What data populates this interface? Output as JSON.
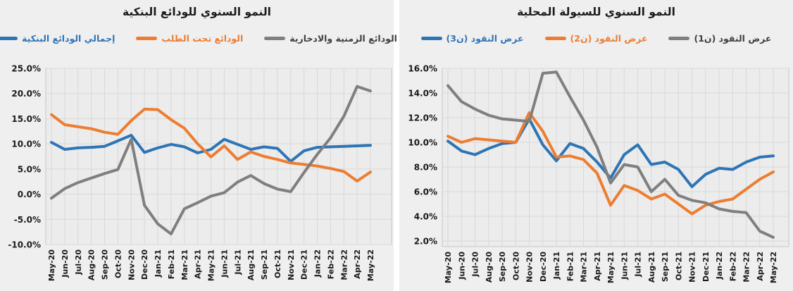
{
  "chart_data": [
    {
      "type": "line",
      "title": "النمو السنوي للودائع البنكية",
      "legend_position": "top",
      "grid": true,
      "ylabel": "",
      "xlabel": "",
      "ylim": [
        -10,
        25
      ],
      "ytick_values": [
        25,
        20,
        15,
        10,
        5,
        0,
        -5,
        -10
      ],
      "ytick_labels": [
        "25.0%",
        "20.0%",
        "15.0%",
        "10.0%",
        "5.0%",
        "0.0%",
        "-5.0%",
        "-10.0%"
      ],
      "categories": [
        "May-20",
        "Jun-20",
        "Jul-20",
        "Aug-20",
        "Sep-20",
        "Oct-20",
        "Nov-20",
        "Dec-20",
        "Jan-21",
        "Feb-21",
        "Mar-21",
        "Apr-21",
        "May-21",
        "Jun-21",
        "Jul-21",
        "Aug-21",
        "Sep-21",
        "Oct-21",
        "Nov-21",
        "Dec-21",
        "Jan-22",
        "Feb-22",
        "Mar-22",
        "Apr-22",
        "May-22"
      ],
      "series": [
        {
          "name": "إجمالي الودائع البنكية",
          "color": "#2E75B6",
          "label_color": "#2E75B6",
          "values": [
            10.3,
            8.9,
            9.2,
            9.3,
            9.5,
            10.6,
            11.7,
            8.3,
            9.2,
            9.9,
            9.4,
            8.2,
            8.9,
            10.9,
            9.9,
            8.9,
            9.4,
            9.1,
            6.5,
            8.6,
            9.3,
            9.4,
            9.5,
            9.6,
            9.7
          ]
        },
        {
          "name": "الودائع تحت الطلب",
          "color": "#ED7D31",
          "label_color": "#ED7D31",
          "values": [
            15.8,
            13.8,
            13.4,
            13.0,
            12.3,
            11.9,
            14.6,
            16.9,
            16.8,
            14.8,
            13.1,
            10.0,
            7.4,
            9.6,
            6.9,
            8.4,
            7.5,
            6.9,
            6.2,
            5.9,
            5.6,
            5.1,
            4.5,
            2.6,
            4.4
          ]
        },
        {
          "name": "الودائع الزمنية والادخارية",
          "color": "#7F7F7F",
          "label_color": "#3f3f3f",
          "values": [
            -0.8,
            1.1,
            2.3,
            3.2,
            4.1,
            4.9,
            10.9,
            -2.2,
            -5.9,
            -7.9,
            -2.9,
            -1.7,
            -0.4,
            0.3,
            2.4,
            3.7,
            2.1,
            1.0,
            0.5,
            4.3,
            7.9,
            11.2,
            15.5,
            21.4,
            20.5
          ]
        }
      ]
    },
    {
      "type": "line",
      "title": "النمو السنوي للسيولة المحلية",
      "legend_position": "top",
      "grid": true,
      "ylabel": "",
      "xlabel": "",
      "ylim": [
        2,
        16
      ],
      "ytick_values": [
        16,
        14,
        12,
        10,
        8,
        6,
        4,
        2
      ],
      "ytick_labels": [
        "16.0%",
        "14.0%",
        "12.0%",
        "10.0%",
        "8.0%",
        "6.0%",
        "4.0%",
        "2.0%"
      ],
      "categories": [
        "May-20",
        "Jun-20",
        "Jul-20",
        "Aug-20",
        "Sep-20",
        "Oct-20",
        "Nov-20",
        "Dec-20",
        "Jan-21",
        "Feb-21",
        "Mar-21",
        "Apr-21",
        "May-21",
        "Jun-21",
        "Jul-21",
        "Aug-21",
        "Sep-21",
        "Oct-21",
        "Nov-21",
        "Dec-21",
        "Jan-22",
        "Feb-22",
        "Mar-22",
        "Apr-22",
        "May-22"
      ],
      "series": [
        {
          "name": "عرض النقود (ن3)",
          "color": "#2E75B6",
          "label_color": "#2E75B6",
          "values": [
            10.1,
            9.3,
            9.0,
            9.5,
            9.9,
            10.0,
            11.9,
            9.8,
            8.5,
            9.9,
            9.5,
            8.4,
            7.1,
            9.0,
            9.8,
            8.2,
            8.4,
            7.8,
            6.4,
            7.4,
            7.9,
            7.8,
            8.4,
            8.8,
            8.9
          ]
        },
        {
          "name": "عرض النقود (ن2)",
          "color": "#ED7D31",
          "label_color": "#ED7D31",
          "values": [
            10.5,
            10.0,
            10.3,
            10.2,
            10.1,
            10.0,
            12.4,
            10.9,
            8.8,
            8.9,
            8.6,
            7.5,
            4.9,
            6.5,
            6.1,
            5.4,
            5.8,
            5.0,
            4.2,
            4.9,
            5.2,
            5.4,
            6.2,
            7.0,
            7.6
          ]
        },
        {
          "name": "عرض النقود (ن1)",
          "color": "#7F7F7F",
          "label_color": "#3f3f3f",
          "values": [
            14.6,
            13.3,
            12.7,
            12.2,
            11.9,
            11.8,
            11.7,
            15.6,
            15.7,
            13.7,
            11.8,
            9.6,
            6.7,
            8.2,
            8.0,
            6.0,
            7.0,
            5.7,
            5.3,
            5.1,
            4.6,
            4.4,
            4.3,
            2.8,
            2.3
          ]
        }
      ]
    }
  ]
}
